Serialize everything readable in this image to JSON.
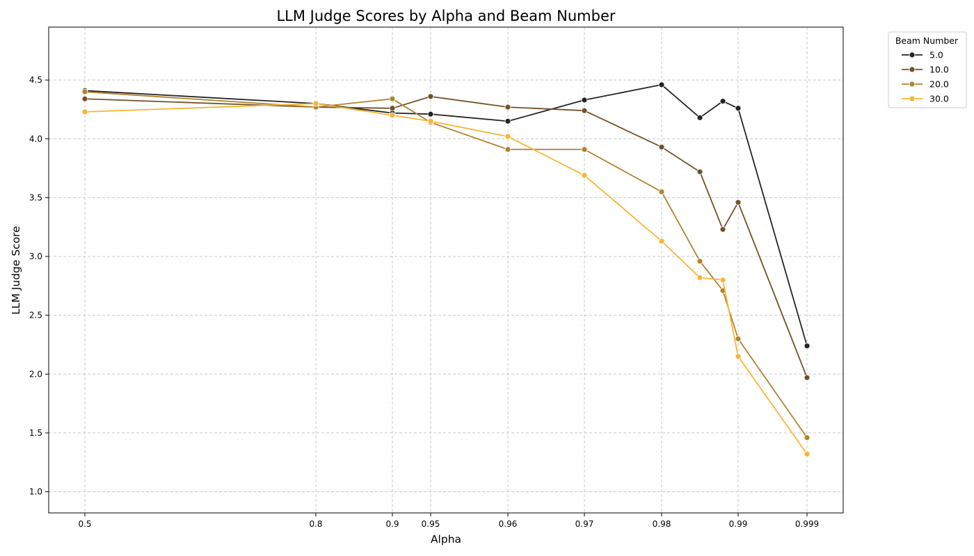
{
  "chart_data": {
    "type": "line",
    "title": "LLM Judge Scores by Alpha and Beam Number",
    "xlabel": "Alpha",
    "ylabel": "LLM Judge Score",
    "x_tick_labels": [
      "0.5",
      "0.8",
      "0.9",
      "0.95",
      "0.96",
      "0.97",
      "0.98",
      "0.99",
      "0.999"
    ],
    "y_ticks": [
      "1.0",
      "1.5",
      "2.0",
      "2.5",
      "3.0",
      "3.5",
      "4.0",
      "4.5"
    ],
    "ylim": [
      0.82,
      4.95
    ],
    "x_scale": "categorical-like (alpha ticks unevenly spaced)",
    "grid": true,
    "legend": {
      "title": "Beam Number",
      "placement": "outside-top-right"
    },
    "series": [
      {
        "name": "5.0",
        "color": "#242424",
        "points": [
          {
            "x": 0.5,
            "y": 4.41
          },
          {
            "x": 0.8,
            "y": 4.3
          },
          {
            "x": 0.9,
            "y": 4.22
          },
          {
            "x": 0.95,
            "y": 4.21
          },
          {
            "x": 0.96,
            "y": 4.15
          },
          {
            "x": 0.97,
            "y": 4.33
          },
          {
            "x": 0.98,
            "y": 4.46
          },
          {
            "x": 0.985,
            "y": 4.18
          },
          {
            "x": 0.988,
            "y": 4.32
          },
          {
            "x": 0.99,
            "y": 4.26
          },
          {
            "x": 0.999,
            "y": 2.24
          }
        ]
      },
      {
        "name": "10.0",
        "color": "#725226",
        "points": [
          {
            "x": 0.5,
            "y": 4.34
          },
          {
            "x": 0.8,
            "y": 4.27
          },
          {
            "x": 0.9,
            "y": 4.26
          },
          {
            "x": 0.95,
            "y": 4.36
          },
          {
            "x": 0.96,
            "y": 4.27
          },
          {
            "x": 0.97,
            "y": 4.24
          },
          {
            "x": 0.98,
            "y": 3.93
          },
          {
            "x": 0.985,
            "y": 3.72
          },
          {
            "x": 0.988,
            "y": 3.23
          },
          {
            "x": 0.99,
            "y": 3.46
          },
          {
            "x": 0.999,
            "y": 1.97
          }
        ]
      },
      {
        "name": "20.0",
        "color": "#b0842f",
        "points": [
          {
            "x": 0.5,
            "y": 4.4
          },
          {
            "x": 0.8,
            "y": 4.27
          },
          {
            "x": 0.9,
            "y": 4.34
          },
          {
            "x": 0.95,
            "y": 4.14
          },
          {
            "x": 0.96,
            "y": 3.91
          },
          {
            "x": 0.97,
            "y": 3.91
          },
          {
            "x": 0.98,
            "y": 3.55
          },
          {
            "x": 0.985,
            "y": 2.96
          },
          {
            "x": 0.988,
            "y": 2.71
          },
          {
            "x": 0.99,
            "y": 2.3
          },
          {
            "x": 0.999,
            "y": 1.46
          }
        ]
      },
      {
        "name": "30.0",
        "color": "#fab433",
        "points": [
          {
            "x": 0.5,
            "y": 4.23
          },
          {
            "x": 0.8,
            "y": 4.3
          },
          {
            "x": 0.9,
            "y": 4.2
          },
          {
            "x": 0.95,
            "y": 4.15
          },
          {
            "x": 0.96,
            "y": 4.02
          },
          {
            "x": 0.97,
            "y": 3.69
          },
          {
            "x": 0.98,
            "y": 3.13
          },
          {
            "x": 0.985,
            "y": 2.82
          },
          {
            "x": 0.988,
            "y": 2.8
          },
          {
            "x": 0.99,
            "y": 2.15
          },
          {
            "x": 0.999,
            "y": 1.32
          }
        ]
      }
    ]
  }
}
